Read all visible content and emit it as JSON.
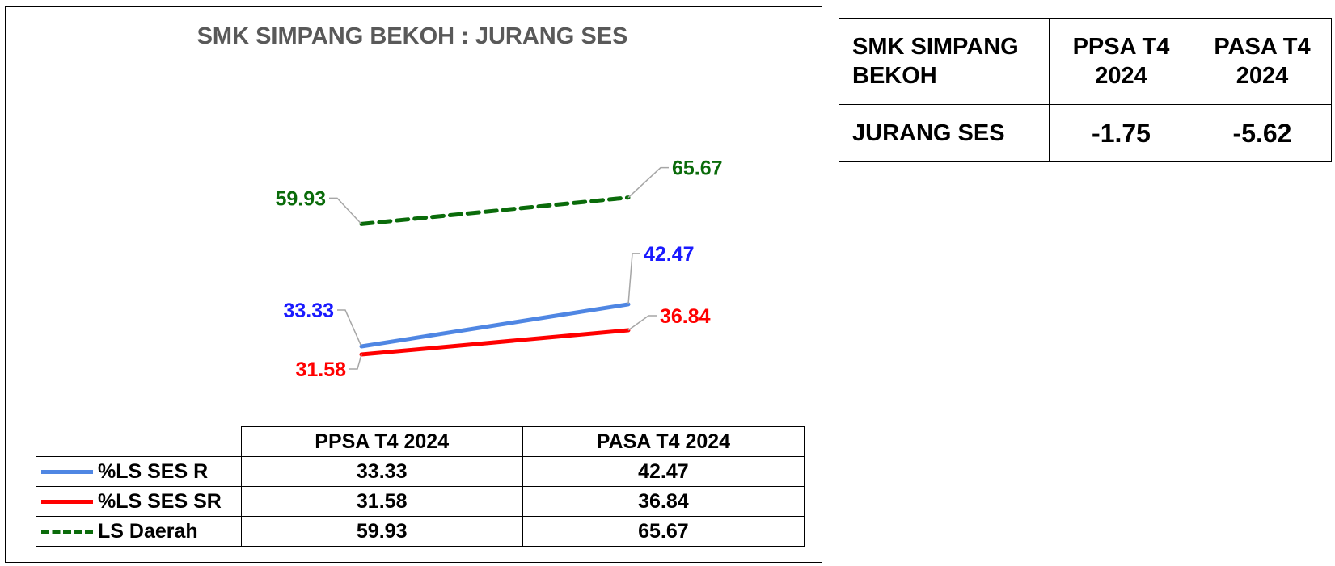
{
  "chart_data": {
    "type": "line",
    "title": "SMK SIMPANG BEKOH : JURANG SES",
    "categories": [
      "PPSA T4 2024",
      "PASA T4 2024"
    ],
    "series": [
      {
        "name": "%LS SES R",
        "values": [
          33.33,
          42.47
        ],
        "color": "#4f86e3",
        "style": "solid"
      },
      {
        "name": "%LS SES SR",
        "values": [
          31.58,
          36.84
        ],
        "color": "#ff0000",
        "style": "solid"
      },
      {
        "name": "LS Daerah",
        "values": [
          59.93,
          65.67
        ],
        "color": "#0a6b0a",
        "style": "dashed"
      }
    ],
    "data_labels": [
      [
        "33.33",
        "42.47"
      ],
      [
        "31.58",
        "36.84"
      ],
      [
        "59.93",
        "65.67"
      ]
    ],
    "label_colors": [
      "#1a1aff",
      "#ff0000",
      "#0a6b0a"
    ],
    "ylim": [
      0,
      100
    ],
    "xlabel": "",
    "ylabel": "",
    "grid": false,
    "legend": "data table below chart"
  },
  "summary_table": {
    "header_school_line1": "SMK SIMPANG",
    "header_school_line2": "BEKOH",
    "header_col1_line1": "PPSA T4",
    "header_col1_line2": "2024",
    "header_col2_line1": "PASA T4",
    "header_col2_line2": "2024",
    "row_label": "JURANG SES",
    "row_values": [
      "-1.75",
      "-5.62"
    ]
  }
}
